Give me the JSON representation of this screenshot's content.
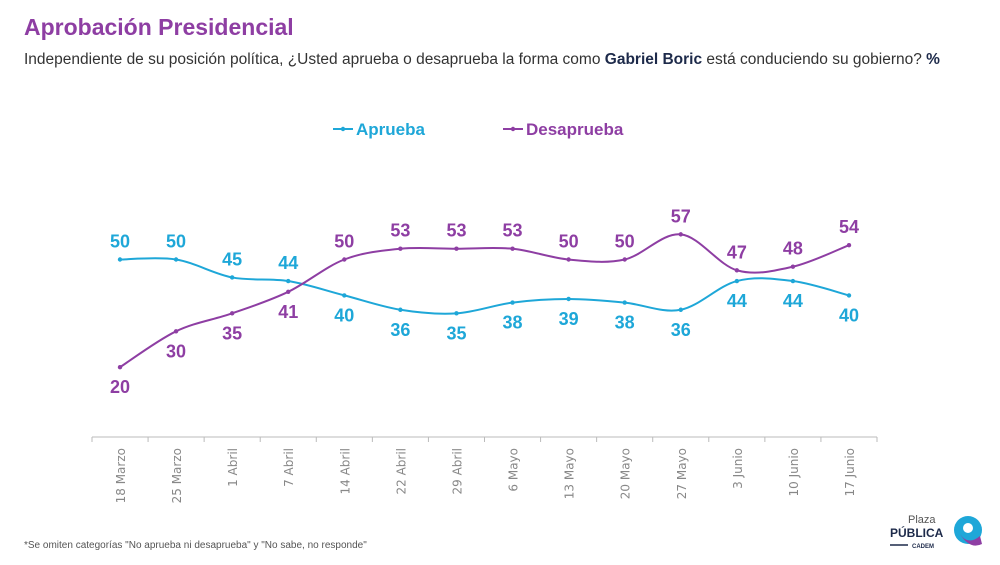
{
  "title": "Aprobación Presidencial",
  "subtitle": {
    "pre": "Independiente de su posición política, ¿Usted aprueba o desaprueba la forma como ",
    "bold": "Gabriel Boric",
    "post": " está conduciendo su gobierno? ",
    "unit": "%"
  },
  "footnote": "*Se omiten categorías \"No aprueba ni desaprueba\" y \"No sabe, no responde\"",
  "logo": {
    "line1": "Plaza",
    "line2": "PÚBLICA",
    "line3": "CADEM"
  },
  "chart_data": {
    "type": "line",
    "categories": [
      "18 Marzo",
      "25 Marzo",
      "1 Abril",
      "7 Abril",
      "14 Abril",
      "22 Abril",
      "29 Abril",
      "6 Mayo",
      "13 Mayo",
      "20 Mayo",
      "27 Mayo",
      "3 Junio",
      "10 Junio",
      "17 Junio"
    ],
    "series": [
      {
        "name": "Aprueba",
        "color": "#1ea7d8",
        "values": [
          50,
          50,
          45,
          44,
          40,
          36,
          35,
          38,
          39,
          38,
          36,
          44,
          44,
          40
        ]
      },
      {
        "name": "Desaprueba",
        "color": "#8e3ea3",
        "values": [
          20,
          30,
          35,
          41,
          50,
          53,
          53,
          53,
          50,
          50,
          57,
          47,
          48,
          54
        ]
      }
    ],
    "legend": "top-center",
    "grid": false,
    "y_axis_visible": false
  }
}
